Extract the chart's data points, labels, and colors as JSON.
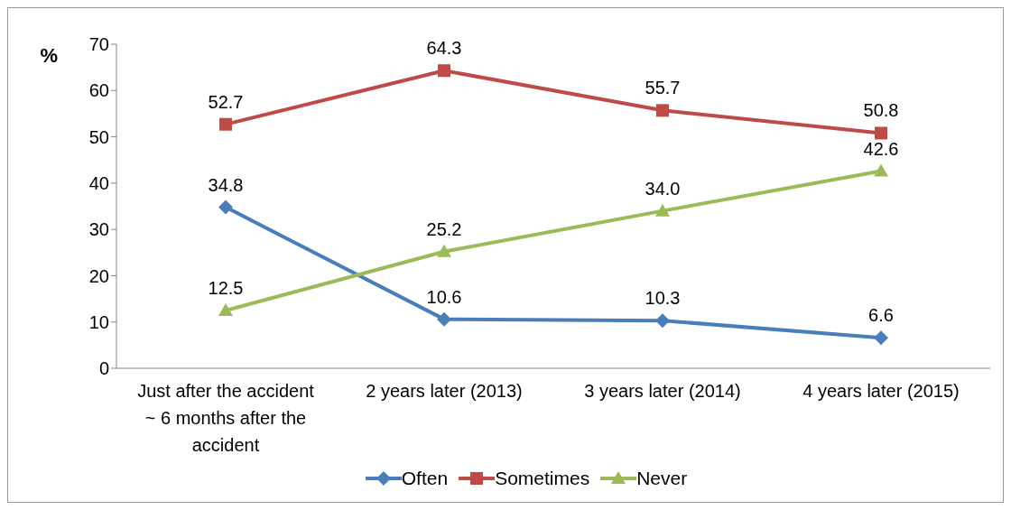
{
  "chart_data": {
    "type": "line",
    "ylabel": "%",
    "categories": [
      "Just after the accident ~ 6 months after the accident",
      "2 years later (2013)",
      "3 years later (2014)",
      "4 years later (2015)"
    ],
    "series": [
      {
        "name": "Often",
        "color": "#4a7ebb",
        "marker": "diamond",
        "values": [
          34.8,
          10.6,
          10.3,
          6.6
        ],
        "value_labels": [
          "34.8",
          "10.6",
          "10.3",
          "6.6"
        ]
      },
      {
        "name": "Sometimes",
        "color": "#be4b48",
        "marker": "square",
        "values": [
          52.7,
          64.3,
          55.7,
          50.8
        ],
        "value_labels": [
          "52.7",
          "64.3",
          "55.7",
          "50.8"
        ]
      },
      {
        "name": "Never",
        "color": "#9bbb59",
        "marker": "triangle",
        "values": [
          12.5,
          25.2,
          34.0,
          42.6
        ],
        "value_labels": [
          "12.5",
          "25.2",
          "34.0",
          "42.6"
        ]
      }
    ],
    "ylim": [
      0,
      70
    ],
    "yticks": [
      0,
      10,
      20,
      30,
      40,
      50,
      60,
      70
    ],
    "legend": "bottom",
    "line_style": "solid"
  }
}
